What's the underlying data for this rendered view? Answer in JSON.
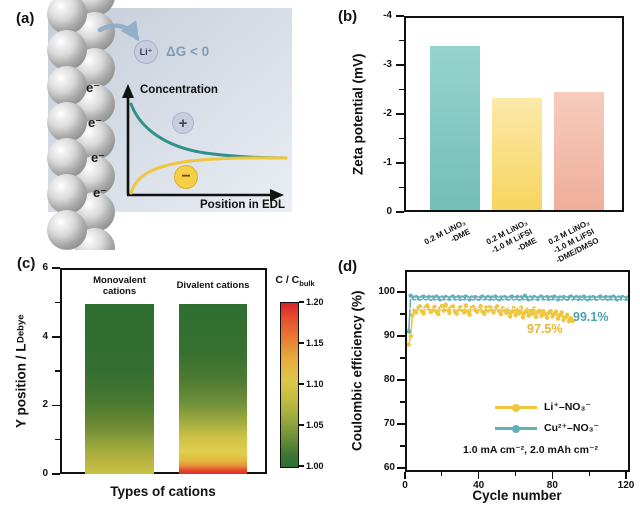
{
  "panel_a": {
    "label": "(a)",
    "li_ion": "Li⁺",
    "delta_g": "ΔG < 0",
    "electrons": [
      "e⁻",
      "e⁻",
      "e⁻",
      "e⁻"
    ],
    "plus_sign": "+",
    "minus_sign": "−",
    "y_axis_label": "Concentration",
    "x_axis_label": "Position in EDL",
    "colors": {
      "cation_curve": "#2f9189",
      "anion_curve": "#f0c63b",
      "arrow": "#93aec7",
      "delta_g_text": "#7f9cba",
      "ion_circle": "#c9cde0",
      "anion_circle": "#f5cf45",
      "background_top": "#c5cdd9",
      "background_bottom": "#eaeef4"
    }
  },
  "chart_data": [
    {
      "id": "b",
      "panel_label": "(b)",
      "type": "bar",
      "ylabel": "Zeta potential (mV)",
      "categories": [
        "0.2 M LiNO₃\n-DME",
        "0.2 M LiNO₃\n-1.0 M LiFSI\n-DME",
        "0.2 M LiNO₃\n-1.0 M LiFSI\n-DME/DMSO"
      ],
      "values": [
        -3.38,
        -2.33,
        -2.45
      ],
      "ylim": [
        0,
        -4
      ],
      "yticks_major": [
        -4,
        -3,
        -2,
        -1,
        0
      ],
      "yticks_minor": [
        -3.5,
        -2.5,
        -1.5,
        -0.5
      ],
      "bar_colors_top": [
        "#97d3ce",
        "#fbe9a9",
        "#f7cbbc"
      ],
      "bar_colors_bottom": [
        "#74bdb9",
        "#f7d560",
        "#efae9c"
      ]
    },
    {
      "id": "c",
      "panel_label": "(c)",
      "type": "heatmap",
      "ylabel_main": "Y position / L",
      "ylabel_sub": "Debye",
      "xlabel": "Types of cations",
      "ylim": [
        0,
        6
      ],
      "yticks_major": [
        0,
        2,
        4,
        6
      ],
      "yticks_minor": [
        1,
        3,
        5
      ],
      "columns": [
        {
          "title": "Monovalent\ncations",
          "value_span": [
            0,
            5
          ],
          "gradient_top_to_bottom": [
            [
              "#2e6f31",
              0
            ],
            [
              "#336f31",
              40
            ],
            [
              "#49792f",
              58
            ],
            [
              "#6f8a35",
              72
            ],
            [
              "#97a63c",
              83
            ],
            [
              "#b7b441",
              92
            ],
            [
              "#c9c243",
              100
            ]
          ]
        },
        {
          "title": "Divalent cations",
          "value_span": [
            0,
            5
          ],
          "gradient_top_to_bottom": [
            [
              "#2e6f31",
              0
            ],
            [
              "#36702f",
              28
            ],
            [
              "#4c7a31",
              44
            ],
            [
              "#6f8f3a",
              58
            ],
            [
              "#a3ad3f",
              70
            ],
            [
              "#d0c348",
              79
            ],
            [
              "#e0ce4d",
              87
            ],
            [
              "#e3b83f",
              92
            ],
            [
              "#e8923a",
              95
            ],
            [
              "#e4512e",
              97.5
            ],
            [
              "#dd2b28",
              100
            ]
          ]
        }
      ],
      "colorbar": {
        "title_main": "C / C",
        "title_sub": "bulk",
        "range": [
          1.0,
          1.2
        ],
        "tick_labels": [
          "1.00",
          "1.05",
          "1.10",
          "1.15",
          "1.20"
        ],
        "colors_top_to_bottom": [
          [
            "#da2428",
            0
          ],
          [
            "#e4512e",
            10
          ],
          [
            "#e87f33",
            22
          ],
          [
            "#e8a83c",
            33
          ],
          [
            "#ddc74a",
            47
          ],
          [
            "#c3bc43",
            58
          ],
          [
            "#9dab3d",
            70
          ],
          [
            "#6f8f38",
            82
          ],
          [
            "#417732",
            92
          ],
          [
            "#2e6f31",
            100
          ]
        ]
      }
    },
    {
      "id": "d",
      "panel_label": "(d)",
      "type": "scatter",
      "xlabel": "Cycle number",
      "ylabel": "Coulombic efficiency (%)",
      "xlim": [
        0,
        120
      ],
      "ylim": [
        60,
        105
      ],
      "xticks_major": [
        0,
        40,
        80,
        120
      ],
      "xticks_minor": [
        20,
        60,
        100
      ],
      "yticks_major": [
        60,
        70,
        80,
        90,
        100
      ],
      "yticks_minor": [
        65,
        75,
        85,
        95
      ],
      "condition_label": "1.0 mA cm⁻², 2.0 mAh cm⁻²",
      "annotations": [
        {
          "text": "97.5%",
          "color": "#e3b733"
        },
        {
          "text": "99.1%",
          "color": "#4ba3af"
        }
      ],
      "series": [
        {
          "name": "Li⁺–NO₃⁻",
          "color": "#f0c63e",
          "start_cycle": 1,
          "mean_line": {
            "value": 96.7,
            "x_start": 1,
            "x_end": 93
          },
          "values": [
            88.5,
            90.4,
            95.2,
            96.3,
            95.8,
            96.8,
            97.2,
            96.1,
            95.6,
            96.9,
            97.4,
            96.6,
            95.9,
            96.4,
            97.1,
            96.0,
            95.4,
            96.7,
            97.3,
            96.2,
            97.6,
            96.5,
            95.7,
            96.9,
            97.2,
            96.0,
            95.5,
            96.6,
            97.0,
            96.3,
            95.8,
            97.4,
            96.1,
            95.3,
            96.8,
            97.1,
            96.4,
            95.9,
            96.6,
            97.3,
            96.0,
            95.5,
            96.9,
            96.2,
            97.0,
            96.5,
            95.8,
            96.7,
            97.2,
            96.1,
            95.4,
            96.8,
            96.3,
            95.7,
            96.5,
            94.9,
            95.9,
            96.8,
            95.2,
            96.4,
            95.6,
            96.9,
            94.7,
            95.8,
            96.5,
            95.1,
            96.2,
            95.5,
            96.7,
            94.8,
            95.9,
            96.3,
            95.0,
            96.1,
            95.4,
            94.6,
            95.7,
            96.2,
            94.9,
            95.5,
            96.0,
            94.4,
            95.2,
            95.8,
            94.1,
            94.7,
            95.3,
            93.8,
            94.5,
            93.9
          ]
        },
        {
          "name": "Cu²⁺–NO₃⁻",
          "color": "#5fb0ba",
          "start_cycle": 1,
          "mean_line": {
            "value": 99.0,
            "x_start": 1,
            "x_end": 120
          },
          "values": [
            91.5,
            99.6,
            99.2,
            99.0,
            99.3,
            99.1,
            98.9,
            99.2,
            99.4,
            99.0,
            99.1,
            99.3,
            98.9,
            99.2,
            99.0,
            99.4,
            99.1,
            98.8,
            99.2,
            99.0,
            99.3,
            99.1,
            98.9,
            99.2,
            99.4,
            99.0,
            99.1,
            99.3,
            98.9,
            99.2,
            99.0,
            99.4,
            99.1,
            98.8,
            99.2,
            99.0,
            99.3,
            99.1,
            98.9,
            99.2,
            99.4,
            99.0,
            99.1,
            99.3,
            98.9,
            99.2,
            99.0,
            99.4,
            99.1,
            98.8,
            99.2,
            99.0,
            99.3,
            99.1,
            98.9,
            99.2,
            99.4,
            99.0,
            99.1,
            99.3,
            98.9,
            99.2,
            99.0,
            99.6,
            99.1,
            98.8,
            99.2,
            99.0,
            99.3,
            99.1,
            98.9,
            99.2,
            99.4,
            99.0,
            99.1,
            99.3,
            98.9,
            99.2,
            99.0,
            99.4,
            99.1,
            98.8,
            99.2,
            99.0,
            99.3,
            99.1,
            98.9,
            99.2,
            99.4,
            99.0,
            99.1,
            99.3,
            98.9,
            99.2,
            99.0,
            99.4,
            99.1,
            98.8,
            99.2,
            99.0,
            99.3,
            99.1,
            98.9,
            99.2,
            99.4,
            99.0,
            99.1,
            99.3,
            98.9,
            99.2,
            99.0,
            99.4,
            99.1,
            98.8,
            99.2,
            99.0,
            99.3,
            99.1,
            98.9,
            99.2
          ]
        }
      ]
    }
  ]
}
